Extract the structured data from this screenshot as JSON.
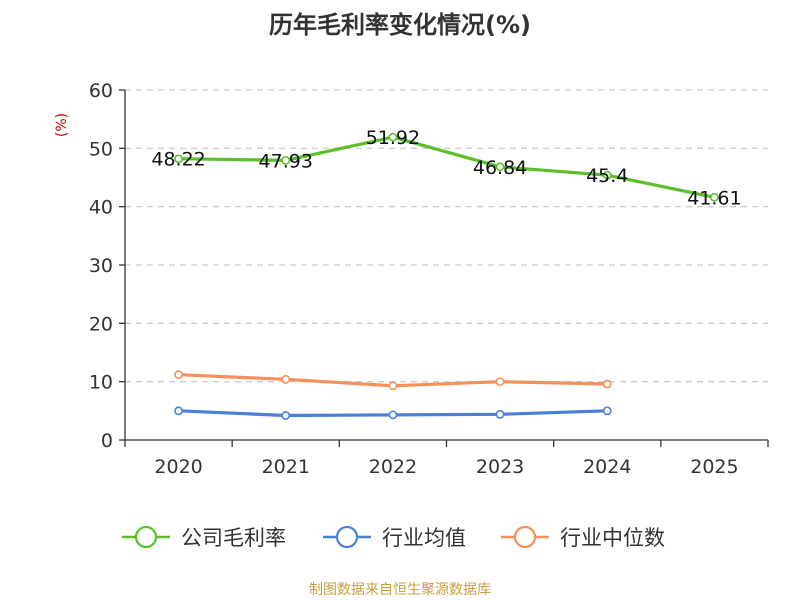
{
  "chart_data": {
    "type": "line",
    "title": "历年毛利率变化情况(%)",
    "ylabel": "(%)",
    "xlabel": "",
    "categories": [
      "2020",
      "2021",
      "2022",
      "2023",
      "2024",
      "2025"
    ],
    "ylim": [
      0,
      60
    ],
    "yticks": [
      0,
      10,
      20,
      30,
      40,
      50,
      60
    ],
    "grid": "horizontal dashed",
    "legend_position": "bottom",
    "series": [
      {
        "name": "公司毛利率",
        "color": "#5cbf2a",
        "values": [
          48.22,
          47.93,
          51.92,
          46.84,
          45.4,
          41.61
        ],
        "labels": [
          "48.22",
          "47.93",
          "51.92",
          "46.84",
          "45.4",
          "41.61"
        ]
      },
      {
        "name": "行业均值",
        "color": "#4a7fdc",
        "values": [
          5.0,
          4.2,
          4.3,
          4.4,
          5.0,
          null
        ]
      },
      {
        "name": "行业中位数",
        "color": "#f5905a",
        "values": [
          11.2,
          10.4,
          9.3,
          10.0,
          9.6,
          null
        ]
      }
    ]
  },
  "footer": {
    "source": "制图数据来自恒生聚源数据库"
  }
}
